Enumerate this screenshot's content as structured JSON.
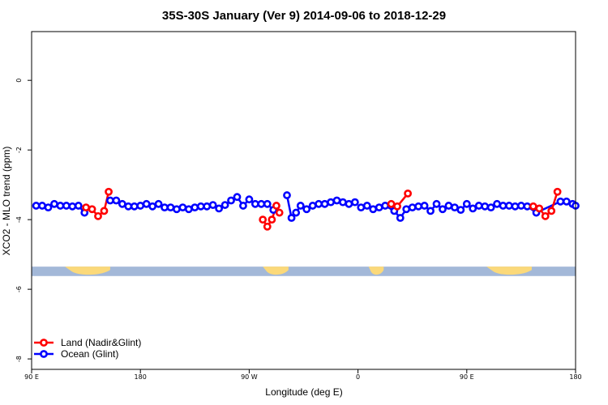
{
  "chart_data": {
    "type": "line",
    "title": "35S-30S January (Ver 9)   2014-09-06 to 2018-12-29",
    "xlabel": "Longitude (deg E)",
    "ylabel": "XCO2 - MLO trend (ppm)",
    "xlim": [
      90,
      450
    ],
    "ylim": [
      -8.3,
      1.4
    ],
    "x_ticks": [
      {
        "value": 90,
        "label": "90 E"
      },
      {
        "value": 162,
        "label": "180"
      },
      {
        "value": 234,
        "label": "90 W"
      },
      {
        "value": 306,
        "label": "0"
      },
      {
        "value": 378,
        "label": "90 E"
      },
      {
        "value": 450,
        "label": "180"
      }
    ],
    "y_ticks": [
      {
        "value": 0,
        "label": "0"
      },
      {
        "value": -2,
        "label": "-2"
      },
      {
        "value": -4,
        "label": "-4"
      },
      {
        "value": -6,
        "label": "-6"
      },
      {
        "value": -8,
        "label": "-8"
      }
    ],
    "series": [
      {
        "name": "Land (Nadir&Glint)",
        "color": "#ff0000",
        "segments": [
          [
            [
              126,
              -3.65
            ],
            [
              130,
              -3.7
            ],
            [
              134,
              -3.9
            ],
            [
              138,
              -3.75
            ],
            [
              141,
              -3.2
            ]
          ],
          [
            [
              243,
              -4.0
            ],
            [
              246,
              -4.2
            ],
            [
              249,
              -4.0
            ],
            [
              252,
              -3.6
            ],
            [
              254,
              -3.8
            ]
          ],
          [
            [
              306,
              -3.55
            ],
            [
              305,
              -3.58
            ],
            [
              306,
              -3.6
            ]
          ],
          [
            [
              306,
              -3.6
            ],
            [
              306,
              -3.62
            ]
          ],
          [
            [
              306,
              -3.6
            ]
          ]
        ]
      },
      {
        "name": "Ocean (Glint)",
        "color": "#0000ff",
        "segments": [
          [
            [
              93,
              -3.6
            ],
            [
              97,
              -3.6
            ],
            [
              101,
              -3.65
            ],
            [
              105,
              -3.55
            ],
            [
              109,
              -3.6
            ],
            [
              113,
              -3.6
            ],
            [
              117,
              -3.62
            ],
            [
              121,
              -3.6
            ],
            [
              125,
              -3.8
            ]
          ],
          [
            [
              142,
              -3.45
            ],
            [
              146,
              -3.45
            ],
            [
              150,
              -3.55
            ],
            [
              154,
              -3.62
            ],
            [
              158,
              -3.62
            ],
            [
              162,
              -3.6
            ],
            [
              166,
              -3.55
            ],
            [
              170,
              -3.62
            ],
            [
              174,
              -3.55
            ],
            [
              178,
              -3.65
            ],
            [
              182,
              -3.65
            ],
            [
              186,
              -3.7
            ],
            [
              190,
              -3.65
            ],
            [
              194,
              -3.7
            ],
            [
              198,
              -3.65
            ],
            [
              202,
              -3.62
            ],
            [
              206,
              -3.62
            ],
            [
              210,
              -3.58
            ],
            [
              214,
              -3.68
            ],
            [
              218,
              -3.58
            ],
            [
              222,
              -3.45
            ],
            [
              226,
              -3.35
            ],
            [
              230,
              -3.6
            ],
            [
              234,
              -3.42
            ],
            [
              238,
              -3.55
            ],
            [
              242,
              -3.55
            ],
            [
              246,
              -3.55
            ],
            [
              250,
              -3.72
            ]
          ],
          [
            [
              259,
              -3.3
            ],
            [
              262,
              -3.95
            ],
            [
              265,
              -3.8
            ],
            [
              268,
              -3.6
            ],
            [
              272,
              -3.7
            ],
            [
              276,
              -3.6
            ],
            [
              280,
              -3.55
            ],
            [
              284,
              -3.55
            ],
            [
              288,
              -3.5
            ],
            [
              292,
              -3.45
            ],
            [
              296,
              -3.5
            ],
            [
              300,
              -3.55
            ],
            [
              304,
              -3.5
            ]
          ]
        ]
      }
    ],
    "land_extra_points": [
      [
        328,
        -3.55
      ],
      [
        332,
        -3.62
      ],
      [
        339,
        -3.25
      ],
      [
        422,
        -3.62
      ],
      [
        426,
        -3.68
      ],
      [
        430,
        -3.9
      ],
      [
        434,
        -3.75
      ],
      [
        438,
        -3.2
      ]
    ],
    "ocean_extra_points": [
      [
        308,
        -3.65
      ],
      [
        312,
        -3.6
      ],
      [
        316,
        -3.7
      ],
      [
        320,
        -3.65
      ],
      [
        324,
        -3.6
      ],
      [
        330,
        -3.75
      ],
      [
        334,
        -3.95
      ],
      [
        338,
        -3.7
      ],
      [
        342,
        -3.65
      ],
      [
        346,
        -3.62
      ],
      [
        350,
        -3.6
      ],
      [
        354,
        -3.75
      ],
      [
        358,
        -3.55
      ],
      [
        362,
        -3.7
      ],
      [
        366,
        -3.6
      ],
      [
        370,
        -3.65
      ],
      [
        374,
        -3.72
      ],
      [
        378,
        -3.55
      ],
      [
        382,
        -3.68
      ],
      [
        386,
        -3.6
      ],
      [
        390,
        -3.62
      ],
      [
        394,
        -3.65
      ],
      [
        398,
        -3.55
      ],
      [
        402,
        -3.6
      ],
      [
        406,
        -3.6
      ],
      [
        410,
        -3.62
      ],
      [
        414,
        -3.6
      ],
      [
        418,
        -3.62
      ],
      [
        424,
        -3.8
      ],
      [
        440,
        -3.48
      ],
      [
        444,
        -3.48
      ],
      [
        448,
        -3.55
      ],
      [
        450,
        -3.6
      ]
    ],
    "legend": {
      "position": "bottom-left",
      "entries": [
        {
          "label": "Land (Nadir&Glint)",
          "color": "#ff0000"
        },
        {
          "label": "Ocean (Glint)",
          "color": "#0000ff"
        }
      ]
    },
    "background_band": {
      "y_range": [
        -5.62,
        -5.35
      ],
      "ocean_color": "#a3b8d8",
      "land_color": "#fbd97a",
      "land_ranges_deg": [
        [
          112,
          142
        ],
        [
          243,
          260
        ],
        [
          313,
          323
        ],
        [
          391,
          421
        ]
      ]
    }
  }
}
